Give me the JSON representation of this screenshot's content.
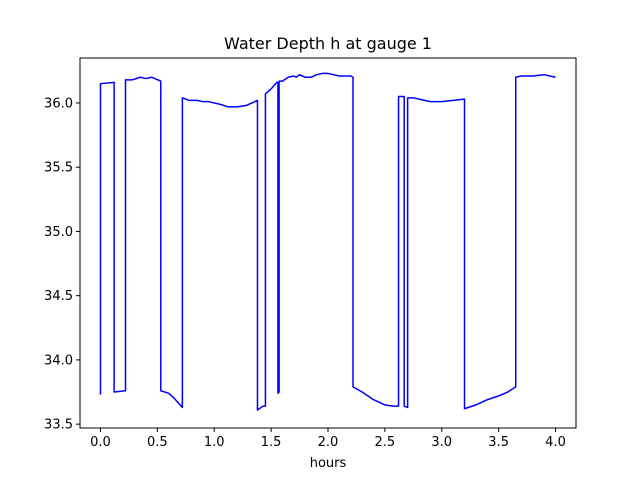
{
  "chart_data": {
    "type": "line",
    "title": "Water Depth h at gauge 1",
    "xlabel": "hours",
    "ylabel": "",
    "xlim": [
      -0.18,
      4.18
    ],
    "ylim": [
      33.47,
      36.35
    ],
    "xticks": [
      0.0,
      0.5,
      1.0,
      1.5,
      2.0,
      2.5,
      3.0,
      3.5,
      4.0
    ],
    "xtick_labels": [
      "0.0",
      "0.5",
      "1.0",
      "1.5",
      "2.0",
      "2.5",
      "3.0",
      "3.5",
      "4.0"
    ],
    "yticks": [
      33.5,
      34.0,
      34.5,
      35.0,
      35.5,
      36.0
    ],
    "ytick_labels": [
      "33.5",
      "34.0",
      "34.5",
      "35.0",
      "35.5",
      "36.0"
    ],
    "grid": false,
    "legend": "none",
    "series": [
      {
        "color": "#0000ff",
        "x": [
          0.0,
          0.0,
          0.12,
          0.12,
          0.22,
          0.22,
          0.28,
          0.35,
          0.4,
          0.45,
          0.53,
          0.53,
          0.6,
          0.65,
          0.72,
          0.72,
          0.78,
          0.85,
          0.9,
          0.95,
          1.05,
          1.12,
          1.2,
          1.28,
          1.38,
          1.38,
          1.43,
          1.45,
          1.45,
          1.5,
          1.55,
          1.56,
          1.56,
          1.57,
          1.57,
          1.6,
          1.65,
          1.7,
          1.72,
          1.75,
          1.8,
          1.85,
          1.9,
          1.95,
          2.0,
          2.05,
          2.1,
          2.15,
          2.2,
          2.22,
          2.22,
          2.3,
          2.35,
          2.4,
          2.5,
          2.57,
          2.62,
          2.62,
          2.67,
          2.67,
          2.7,
          2.7,
          2.75,
          2.8,
          2.85,
          2.9,
          3.0,
          3.1,
          3.2,
          3.2,
          3.3,
          3.4,
          3.5,
          3.58,
          3.65,
          3.65,
          3.7,
          3.8,
          3.9,
          4.0
        ],
        "y": [
          33.73,
          36.15,
          36.16,
          33.75,
          33.76,
          36.18,
          36.18,
          36.2,
          36.19,
          36.2,
          36.17,
          33.76,
          33.74,
          33.7,
          33.63,
          36.04,
          36.02,
          36.02,
          36.01,
          36.01,
          35.99,
          35.97,
          35.97,
          35.98,
          36.02,
          33.61,
          33.64,
          33.64,
          36.07,
          36.11,
          36.16,
          36.16,
          33.74,
          33.75,
          36.17,
          36.17,
          36.2,
          36.21,
          36.2,
          36.22,
          36.2,
          36.2,
          36.22,
          36.23,
          36.23,
          36.22,
          36.21,
          36.21,
          36.21,
          36.2,
          33.79,
          33.75,
          33.72,
          33.69,
          33.65,
          33.64,
          33.64,
          36.05,
          36.05,
          33.64,
          33.63,
          36.04,
          36.04,
          36.03,
          36.02,
          36.01,
          36.01,
          36.02,
          36.03,
          33.62,
          33.65,
          33.69,
          33.72,
          33.75,
          33.79,
          36.2,
          36.21,
          36.21,
          36.22,
          36.2
        ]
      }
    ]
  }
}
